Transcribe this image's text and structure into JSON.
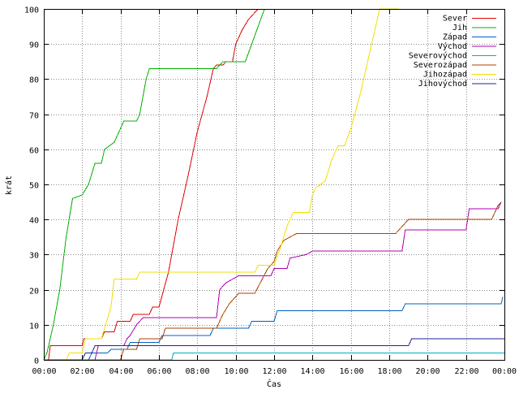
{
  "chart_data": {
    "type": "line",
    "xlabel": "Čas",
    "ylabel": "krát",
    "ylim": [
      0,
      100
    ],
    "xlim": [
      "00:00",
      "24:00"
    ],
    "grid": true,
    "legend_position": "top-right",
    "x_tick_labels": [
      "00:00",
      "02:00",
      "04:00",
      "06:00",
      "08:00",
      "10:00",
      "12:00",
      "14:00",
      "16:00",
      "18:00",
      "20:00",
      "22:00",
      "00:00"
    ],
    "y_tick_labels": [
      "0",
      "10",
      "20",
      "30",
      "40",
      "50",
      "60",
      "70",
      "80",
      "90",
      "100"
    ],
    "series": [
      {
        "name": "Sever",
        "color": "#e00000",
        "points": [
          [
            "00:00",
            0
          ],
          [
            "00:15",
            0
          ],
          [
            "00:20",
            4
          ],
          [
            "02:00",
            4
          ],
          [
            "02:05",
            6
          ],
          [
            "03:00",
            6
          ],
          [
            "03:10",
            8
          ],
          [
            "03:40",
            8
          ],
          [
            "03:50",
            11
          ],
          [
            "04:30",
            11
          ],
          [
            "04:40",
            13
          ],
          [
            "05:30",
            13
          ],
          [
            "05:40",
            15
          ],
          [
            "06:00",
            15
          ],
          [
            "06:30",
            25
          ],
          [
            "07:00",
            40
          ],
          [
            "07:30",
            52
          ],
          [
            "08:00",
            65
          ],
          [
            "08:30",
            75
          ],
          [
            "08:50",
            83
          ],
          [
            "09:00",
            84
          ],
          [
            "09:20",
            84
          ],
          [
            "09:30",
            85
          ],
          [
            "09:50",
            85
          ],
          [
            "10:00",
            90
          ],
          [
            "10:20",
            94
          ],
          [
            "10:40",
            97
          ],
          [
            "11:00",
            99
          ],
          [
            "11:10",
            100
          ]
        ]
      },
      {
        "name": "Jih",
        "color": "#00b000",
        "points": [
          [
            "00:00",
            0
          ],
          [
            "00:10",
            2
          ],
          [
            "00:30",
            10
          ],
          [
            "00:50",
            20
          ],
          [
            "01:10",
            35
          ],
          [
            "01:30",
            46
          ],
          [
            "02:00",
            47
          ],
          [
            "02:20",
            50
          ],
          [
            "02:40",
            56
          ],
          [
            "03:00",
            56
          ],
          [
            "03:10",
            60
          ],
          [
            "03:40",
            62
          ],
          [
            "04:00",
            66
          ],
          [
            "04:10",
            68
          ],
          [
            "04:50",
            68
          ],
          [
            "05:00",
            70
          ],
          [
            "05:20",
            80
          ],
          [
            "05:30",
            83
          ],
          [
            "09:00",
            83
          ],
          [
            "09:20",
            85
          ],
          [
            "10:30",
            85
          ],
          [
            "10:50",
            90
          ],
          [
            "11:10",
            95
          ],
          [
            "11:30",
            100
          ]
        ]
      },
      {
        "name": "Západ",
        "color": "#0060c0",
        "points": [
          [
            "00:00",
            0
          ],
          [
            "02:20",
            0
          ],
          [
            "02:30",
            2
          ],
          [
            "03:20",
            2
          ],
          [
            "03:30",
            3
          ],
          [
            "04:20",
            3
          ],
          [
            "04:30",
            5
          ],
          [
            "06:00",
            5
          ],
          [
            "06:10",
            7
          ],
          [
            "08:40",
            7
          ],
          [
            "08:50",
            9
          ],
          [
            "10:40",
            9
          ],
          [
            "10:50",
            11
          ],
          [
            "12:00",
            11
          ],
          [
            "12:10",
            14
          ],
          [
            "18:40",
            14
          ],
          [
            "18:50",
            16
          ],
          [
            "23:50",
            16
          ],
          [
            "23:55",
            18
          ]
        ]
      },
      {
        "name": "Východ",
        "color": "#b000b0",
        "points": [
          [
            "00:00",
            0
          ],
          [
            "02:40",
            0
          ],
          [
            "02:50",
            4
          ],
          [
            "04:10",
            4
          ],
          [
            "04:20",
            6
          ],
          [
            "04:30",
            7
          ],
          [
            "04:50",
            10
          ],
          [
            "05:10",
            12
          ],
          [
            "09:00",
            12
          ],
          [
            "09:10",
            20
          ],
          [
            "09:30",
            22
          ],
          [
            "10:10",
            24
          ],
          [
            "11:50",
            24
          ],
          [
            "12:00",
            26
          ],
          [
            "12:40",
            26
          ],
          [
            "12:50",
            29
          ],
          [
            "13:40",
            30
          ],
          [
            "14:00",
            31
          ],
          [
            "18:40",
            31
          ],
          [
            "18:50",
            37
          ],
          [
            "22:00",
            37
          ],
          [
            "22:10",
            43
          ],
          [
            "23:40",
            43
          ],
          [
            "23:50",
            45
          ]
        ]
      },
      {
        "name": "Severovýchod",
        "color": "#00b0c0",
        "points": [
          [
            "00:00",
            0
          ],
          [
            "06:40",
            0
          ],
          [
            "06:45",
            2
          ],
          [
            "24:00",
            2
          ]
        ]
      },
      {
        "name": "Severozápad",
        "color": "#b04000",
        "points": [
          [
            "00:00",
            0
          ],
          [
            "04:00",
            0
          ],
          [
            "04:10",
            3
          ],
          [
            "04:50",
            3
          ],
          [
            "05:00",
            6
          ],
          [
            "06:10",
            6
          ],
          [
            "06:20",
            9
          ],
          [
            "09:00",
            9
          ],
          [
            "09:10",
            11
          ],
          [
            "09:20",
            13
          ],
          [
            "09:40",
            16
          ],
          [
            "10:10",
            19
          ],
          [
            "11:00",
            19
          ],
          [
            "11:40",
            26
          ],
          [
            "12:00",
            28
          ],
          [
            "12:10",
            31
          ],
          [
            "12:30",
            34
          ],
          [
            "13:10",
            36
          ],
          [
            "18:20",
            36
          ],
          [
            "18:40",
            38
          ],
          [
            "19:00",
            40
          ],
          [
            "23:20",
            40
          ],
          [
            "23:30",
            42
          ],
          [
            "23:40",
            44
          ],
          [
            "23:50",
            45
          ]
        ]
      },
      {
        "name": "Jihozápad",
        "color": "#f0e000",
        "points": [
          [
            "00:00",
            0
          ],
          [
            "01:10",
            0
          ],
          [
            "01:20",
            2
          ],
          [
            "02:00",
            2
          ],
          [
            "02:10",
            6
          ],
          [
            "03:00",
            6
          ],
          [
            "03:30",
            15
          ],
          [
            "03:40",
            23
          ],
          [
            "04:50",
            23
          ],
          [
            "05:00",
            25
          ],
          [
            "11:00",
            25
          ],
          [
            "11:10",
            27
          ],
          [
            "12:00",
            27
          ],
          [
            "12:20",
            32
          ],
          [
            "12:40",
            38
          ],
          [
            "13:00",
            42
          ],
          [
            "13:50",
            42
          ],
          [
            "14:00",
            47
          ],
          [
            "14:10",
            49
          ],
          [
            "14:40",
            51
          ],
          [
            "15:00",
            57
          ],
          [
            "15:20",
            61
          ],
          [
            "15:40",
            61
          ],
          [
            "16:00",
            66
          ],
          [
            "16:30",
            76
          ],
          [
            "17:00",
            88
          ],
          [
            "17:30",
            100
          ],
          [
            "18:30",
            100
          ]
        ]
      },
      {
        "name": "Jihovýchod",
        "color": "#2020a0",
        "points": [
          [
            "00:00",
            0
          ],
          [
            "02:00",
            0
          ],
          [
            "02:10",
            2
          ],
          [
            "02:30",
            2
          ],
          [
            "02:40",
            4
          ],
          [
            "19:00",
            4
          ],
          [
            "19:10",
            6
          ],
          [
            "24:00",
            6
          ]
        ]
      }
    ]
  }
}
